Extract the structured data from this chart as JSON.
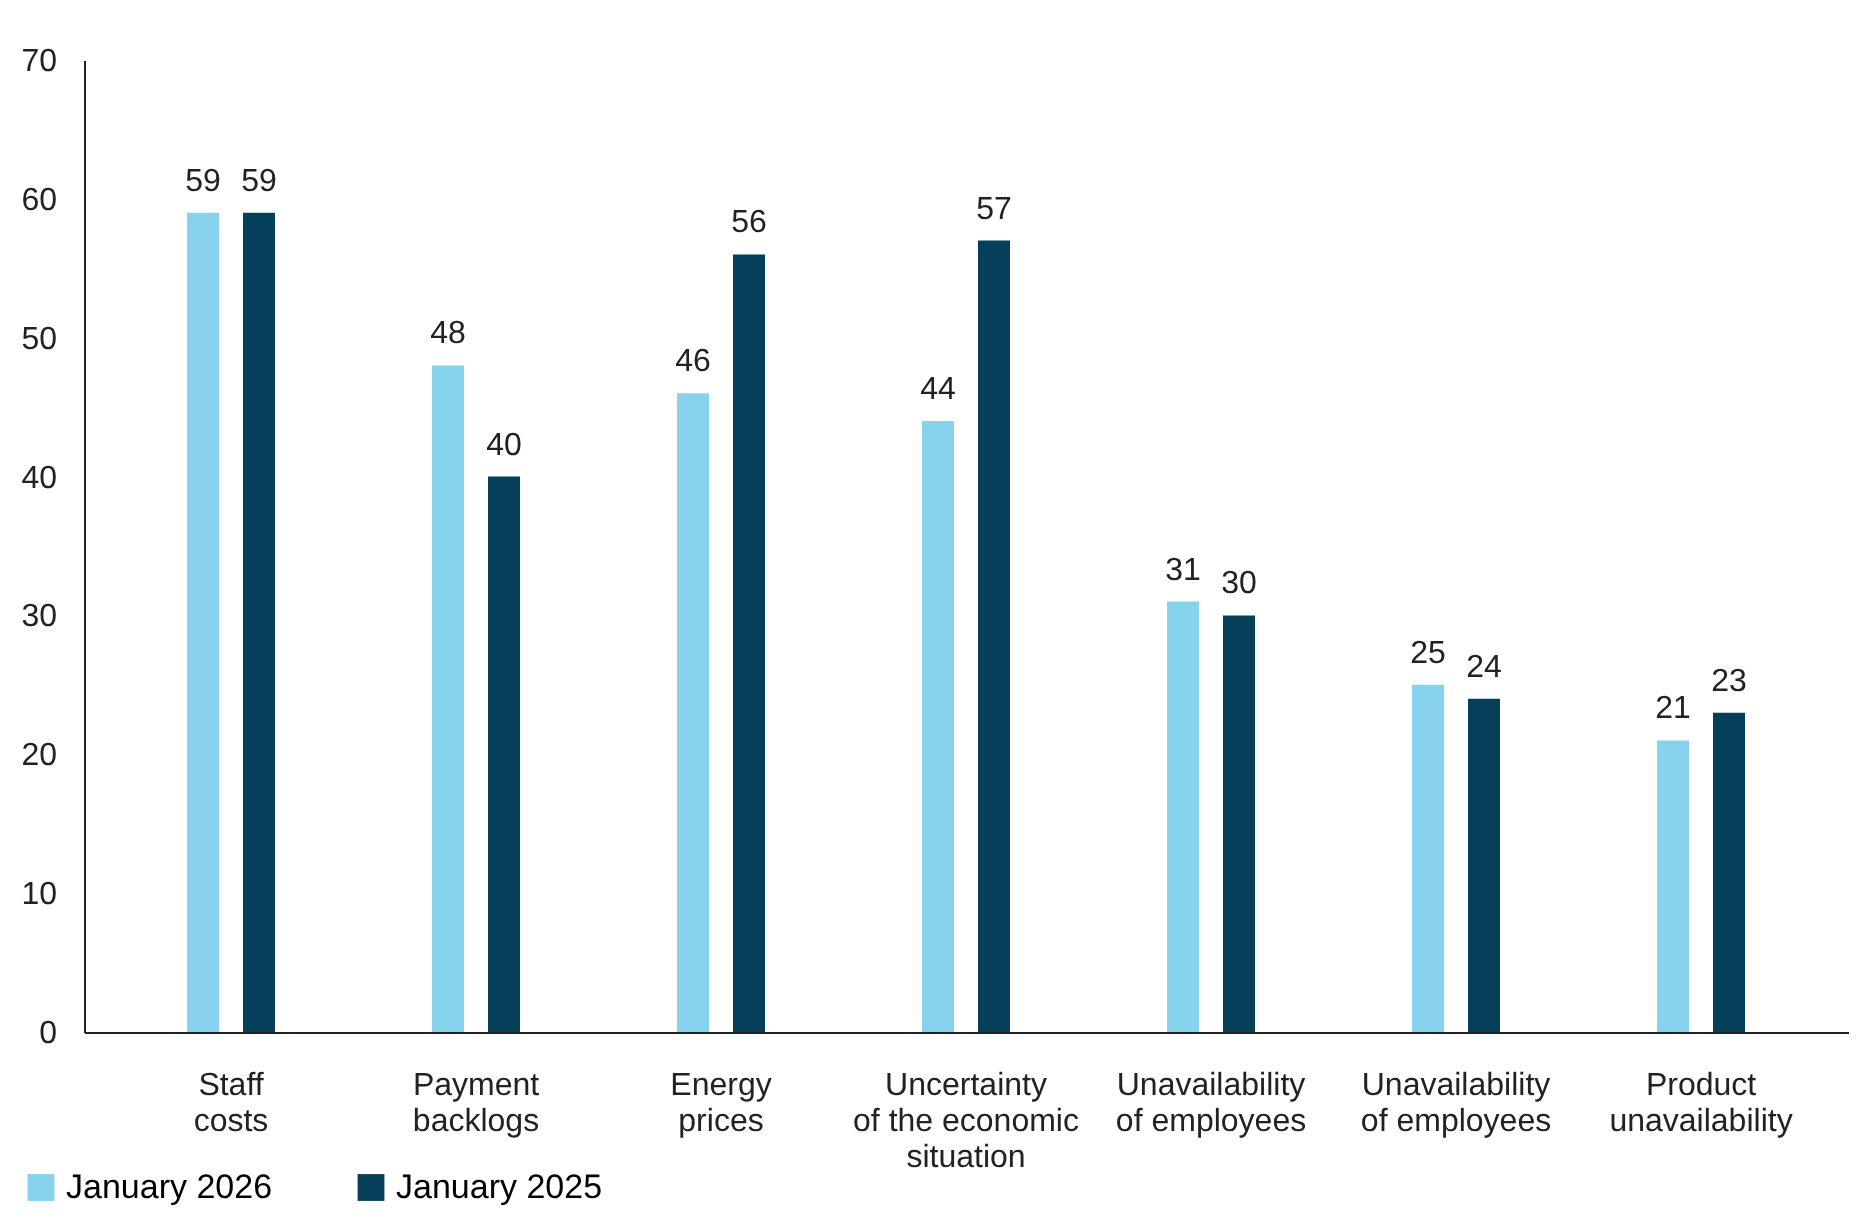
{
  "chart_data": {
    "type": "bar",
    "categories": [
      "Staff\ncosts",
      "Payment\nbacklogs",
      "Energy\nprices",
      "Uncertainty\nof the economic\nsituation",
      "Unavailability\nof employees",
      "Unavailability\nof employees",
      "Product\nunavailability"
    ],
    "series": [
      {
        "name": "January 2026",
        "color": "#87d3ee",
        "values": [
          59,
          48,
          46,
          44,
          31,
          25,
          21
        ]
      },
      {
        "name": "January 2025",
        "color": "#053f5a",
        "values": [
          59,
          40,
          56,
          57,
          30,
          24,
          23
        ]
      }
    ],
    "ylim": [
      0,
      70
    ],
    "yticks": [
      0,
      10,
      20,
      30,
      40,
      50,
      60,
      70
    ],
    "grid": false,
    "legend": "bottom left",
    "data_labels": true
  }
}
